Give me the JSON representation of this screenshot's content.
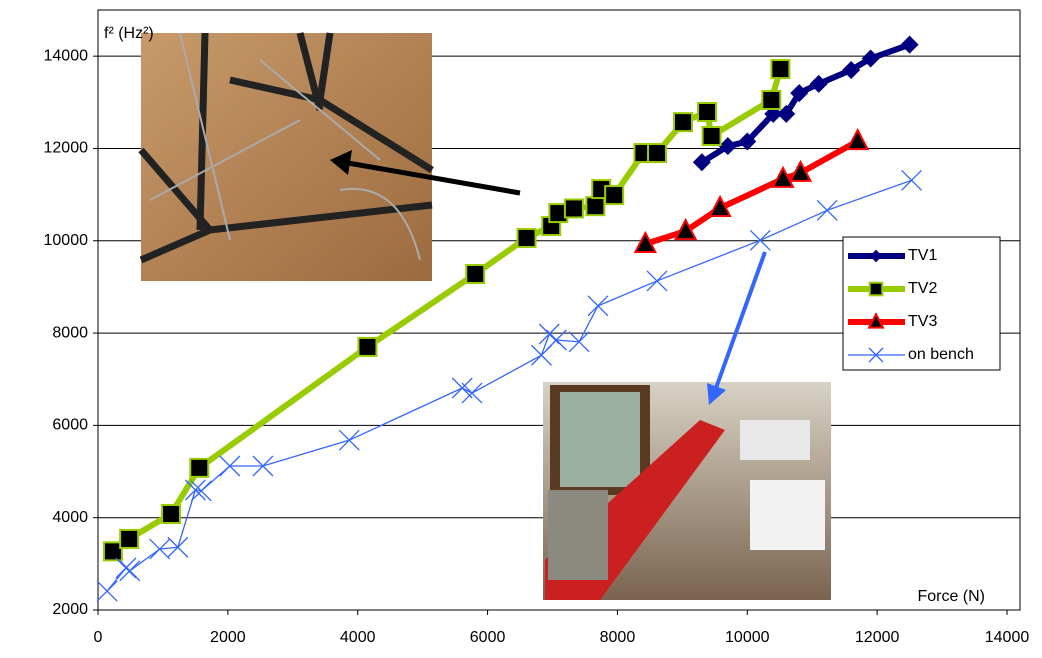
{
  "chart_data": {
    "type": "line",
    "y_label": "f² (Hz²)",
    "x_label": "Force (N)",
    "xlim": [
      0,
      14000
    ],
    "xticks": [
      0,
      2000,
      4000,
      6000,
      8000,
      10000,
      12000,
      14000
    ],
    "ylim": [
      2000,
      15000
    ],
    "yticks": [
      2000,
      4000,
      6000,
      8000,
      10000,
      12000,
      14000
    ],
    "grid": true,
    "legend": "right",
    "series": [
      {
        "name": "TV1",
        "color": "#000080",
        "marker": "diamond",
        "x": [
          9300,
          9700,
          10000,
          10400,
          10600,
          10800,
          11100,
          11600,
          11900,
          12500
        ],
        "values": [
          11700,
          12050,
          12150,
          12750,
          12750,
          13200,
          13400,
          13700,
          13950,
          14250
        ]
      },
      {
        "name": "TV2",
        "color": "#99cc00",
        "marker": "square",
        "x": [
          230,
          480,
          1125,
          1560,
          4150,
          5810,
          6600,
          6980,
          7090,
          7330,
          7660,
          7750,
          7950,
          8400,
          8610,
          9010,
          9380,
          9450,
          10370,
          10510
        ],
        "values": [
          3270,
          3540,
          4080,
          5080,
          7700,
          9280,
          10060,
          10320,
          10600,
          10700,
          10750,
          11120,
          10990,
          11900,
          11900,
          12570,
          12790,
          12270,
          13050,
          13720
        ]
      },
      {
        "name": "TV3",
        "color": "#ff0000",
        "marker": "triangle",
        "x": [
          8430,
          9050,
          9580,
          10550,
          10820,
          11700
        ],
        "values": [
          9930,
          10210,
          10710,
          11340,
          11470,
          12160
        ]
      },
      {
        "name": "on bench",
        "color": "#3366ff",
        "marker": "x",
        "x": [
          140,
          430,
          490,
          950,
          1230,
          1500,
          1590,
          2030,
          2540,
          3870,
          5610,
          5760,
          6830,
          6950,
          7060,
          7410,
          7700,
          8610,
          10200,
          11230,
          12530
        ],
        "values": [
          2410,
          2910,
          2850,
          3320,
          3360,
          4600,
          4580,
          5120,
          5120,
          5680,
          6810,
          6700,
          7520,
          7980,
          7850,
          7810,
          8590,
          9130,
          10010,
          10660,
          11310
        ]
      }
    ]
  }
}
